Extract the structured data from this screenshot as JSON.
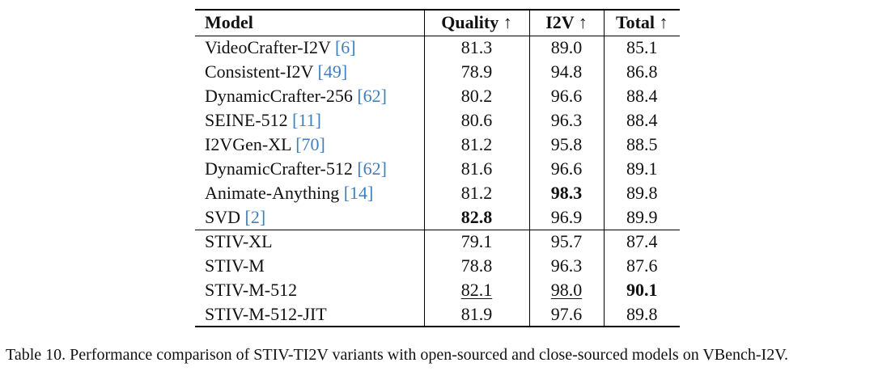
{
  "table": {
    "headers": {
      "model": "Model",
      "quality": "Quality ↑",
      "i2v": "I2V ↑",
      "total": "Total ↑"
    },
    "groups": [
      [
        {
          "name": "VideoCrafter-I2V",
          "ref": "[6]",
          "quality": "81.3",
          "i2v": "89.0",
          "total": "85.1"
        },
        {
          "name": "Consistent-I2V",
          "ref": "[49]",
          "quality": "78.9",
          "i2v": "94.8",
          "total": "86.8"
        },
        {
          "name": "DynamicCrafter-256",
          "ref": "[62]",
          "quality": "80.2",
          "i2v": "96.6",
          "total": "88.4"
        },
        {
          "name": "SEINE-512",
          "ref": "[11]",
          "quality": "80.6",
          "i2v": "96.3",
          "total": "88.4"
        },
        {
          "name": "I2VGen-XL",
          "ref": "[70]",
          "quality": "81.2",
          "i2v": "95.8",
          "total": "88.5"
        },
        {
          "name": "DynamicCrafter-512",
          "ref": "[62]",
          "quality": "81.6",
          "i2v": "96.6",
          "total": "89.1"
        },
        {
          "name": "Animate-Anything",
          "ref": "[14]",
          "quality": "81.2",
          "i2v": "98.3",
          "total": "89.8",
          "bold": [
            "i2v"
          ]
        },
        {
          "name": "SVD",
          "ref": "[2]",
          "quality": "82.8",
          "i2v": "96.9",
          "total": "89.9",
          "bold": [
            "quality"
          ]
        }
      ],
      [
        {
          "name": "STIV-XL",
          "ref": "",
          "quality": "79.1",
          "i2v": "95.7",
          "total": "87.4"
        },
        {
          "name": "STIV-M",
          "ref": "",
          "quality": "78.8",
          "i2v": "96.3",
          "total": "87.6"
        },
        {
          "name": "STIV-M-512",
          "ref": "",
          "quality": "82.1",
          "i2v": "98.0",
          "total": "90.1",
          "bold": [
            "total"
          ],
          "underline": [
            "quality",
            "i2v"
          ]
        },
        {
          "name": "STIV-M-512-JIT",
          "ref": "",
          "quality": "81.9",
          "i2v": "97.6",
          "total": "89.8"
        }
      ]
    ]
  },
  "caption": "Table 10. Performance comparison of STIV-TI2V variants with open-sourced and close-sourced models on VBench-I2V.",
  "colors": {
    "reference_link": "#3f7fbf"
  }
}
